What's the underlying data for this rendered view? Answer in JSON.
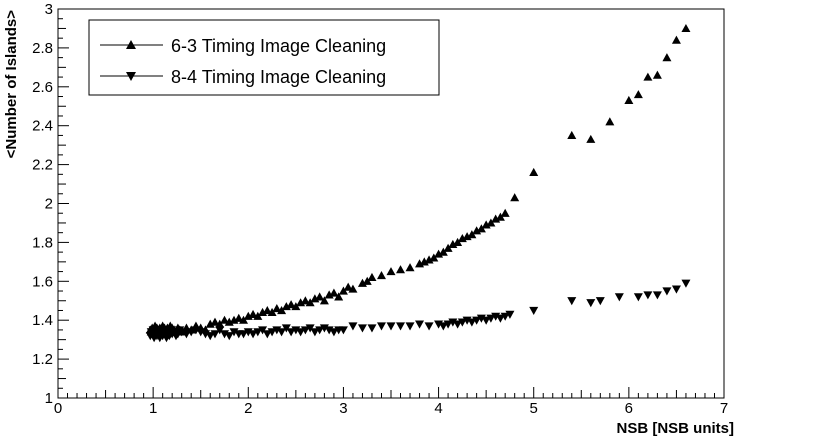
{
  "chart_data": {
    "type": "scatter",
    "xlabel": "NSB [NSB units]",
    "ylabel": "<Number of Islands>",
    "xlim": [
      0,
      7
    ],
    "ylim": [
      1,
      3
    ],
    "xticks": [
      "0",
      "1",
      "2",
      "3",
      "4",
      "5",
      "6",
      "7"
    ],
    "yticks": [
      "1",
      "1.2",
      "1.4",
      "1.6",
      "1.8",
      "2",
      "2.2",
      "2.4",
      "2.6",
      "2.8",
      "3"
    ],
    "grid": false,
    "legend_position": "top-left",
    "series": [
      {
        "name": "6-3 Timing Image Cleaning",
        "marker": "triangle-up",
        "color": "#000000",
        "x": [
          0.97,
          0.98,
          0.99,
          1.0,
          1.01,
          1.02,
          1.03,
          1.04,
          1.05,
          1.06,
          1.07,
          1.08,
          1.09,
          1.1,
          1.11,
          1.12,
          1.13,
          1.14,
          1.15,
          1.16,
          1.17,
          1.18,
          1.19,
          1.2,
          1.22,
          1.24,
          1.26,
          1.28,
          1.3,
          1.35,
          1.4,
          1.45,
          1.5,
          1.55,
          1.6,
          1.65,
          1.7,
          1.75,
          1.8,
          1.85,
          1.9,
          1.95,
          2.0,
          2.05,
          2.1,
          2.15,
          2.2,
          2.25,
          2.3,
          2.35,
          2.4,
          2.45,
          2.5,
          2.55,
          2.6,
          2.65,
          2.7,
          2.75,
          2.8,
          2.85,
          2.9,
          2.95,
          3.0,
          3.05,
          3.1,
          3.2,
          3.25,
          3.3,
          3.4,
          3.5,
          3.6,
          3.7,
          3.8,
          3.85,
          3.9,
          3.95,
          4.0,
          4.05,
          4.1,
          4.15,
          4.2,
          4.25,
          4.3,
          4.35,
          4.4,
          4.45,
          4.5,
          4.55,
          4.6,
          4.65,
          4.7,
          4.8,
          5.0,
          5.4,
          5.6,
          5.8,
          6.0,
          6.1,
          6.2,
          6.3,
          6.4,
          6.5,
          6.6
        ],
        "y": [
          1.35,
          1.34,
          1.36,
          1.33,
          1.35,
          1.37,
          1.34,
          1.36,
          1.35,
          1.33,
          1.36,
          1.34,
          1.35,
          1.37,
          1.34,
          1.36,
          1.33,
          1.35,
          1.36,
          1.34,
          1.35,
          1.37,
          1.34,
          1.36,
          1.35,
          1.34,
          1.36,
          1.35,
          1.34,
          1.36,
          1.35,
          1.37,
          1.36,
          1.35,
          1.38,
          1.39,
          1.38,
          1.4,
          1.39,
          1.4,
          1.41,
          1.4,
          1.42,
          1.43,
          1.42,
          1.44,
          1.45,
          1.44,
          1.46,
          1.45,
          1.47,
          1.48,
          1.47,
          1.49,
          1.5,
          1.49,
          1.51,
          1.52,
          1.5,
          1.53,
          1.54,
          1.52,
          1.55,
          1.57,
          1.56,
          1.59,
          1.6,
          1.62,
          1.63,
          1.65,
          1.66,
          1.67,
          1.69,
          1.7,
          1.71,
          1.72,
          1.74,
          1.75,
          1.77,
          1.79,
          1.8,
          1.82,
          1.83,
          1.84,
          1.86,
          1.87,
          1.89,
          1.9,
          1.92,
          1.93,
          1.95,
          2.03,
          2.16,
          2.35,
          2.33,
          2.42,
          2.53,
          2.56,
          2.65,
          2.66,
          2.75,
          2.84,
          2.9
        ]
      },
      {
        "name": "8-4 Timing Image Cleaning",
        "marker": "triangle-down",
        "color": "#000000",
        "x": [
          0.97,
          0.98,
          0.99,
          1.0,
          1.01,
          1.02,
          1.03,
          1.04,
          1.05,
          1.06,
          1.07,
          1.08,
          1.09,
          1.1,
          1.11,
          1.12,
          1.13,
          1.14,
          1.15,
          1.16,
          1.17,
          1.18,
          1.19,
          1.2,
          1.22,
          1.24,
          1.26,
          1.28,
          1.3,
          1.35,
          1.4,
          1.45,
          1.5,
          1.55,
          1.6,
          1.65,
          1.7,
          1.75,
          1.8,
          1.85,
          1.9,
          1.95,
          2.0,
          2.05,
          2.1,
          2.15,
          2.2,
          2.25,
          2.3,
          2.35,
          2.4,
          2.45,
          2.5,
          2.55,
          2.6,
          2.65,
          2.7,
          2.75,
          2.8,
          2.85,
          2.9,
          2.95,
          3.0,
          3.1,
          3.2,
          3.3,
          3.4,
          3.5,
          3.6,
          3.7,
          3.8,
          3.9,
          4.0,
          4.05,
          4.1,
          4.15,
          4.2,
          4.25,
          4.3,
          4.35,
          4.4,
          4.45,
          4.5,
          4.55,
          4.6,
          4.65,
          4.7,
          4.75,
          5.0,
          5.4,
          5.6,
          5.7,
          5.9,
          6.1,
          6.2,
          6.3,
          6.4,
          6.5,
          6.6
        ],
        "y": [
          1.32,
          1.34,
          1.33,
          1.35,
          1.31,
          1.33,
          1.34,
          1.32,
          1.35,
          1.33,
          1.31,
          1.34,
          1.33,
          1.32,
          1.35,
          1.33,
          1.34,
          1.31,
          1.33,
          1.34,
          1.32,
          1.33,
          1.35,
          1.33,
          1.34,
          1.32,
          1.33,
          1.35,
          1.34,
          1.33,
          1.34,
          1.35,
          1.34,
          1.33,
          1.32,
          1.33,
          1.35,
          1.33,
          1.32,
          1.34,
          1.33,
          1.33,
          1.34,
          1.33,
          1.34,
          1.35,
          1.33,
          1.34,
          1.35,
          1.34,
          1.36,
          1.34,
          1.35,
          1.34,
          1.35,
          1.36,
          1.34,
          1.35,
          1.36,
          1.35,
          1.34,
          1.35,
          1.35,
          1.37,
          1.36,
          1.36,
          1.37,
          1.37,
          1.37,
          1.37,
          1.38,
          1.37,
          1.38,
          1.37,
          1.38,
          1.39,
          1.38,
          1.39,
          1.4,
          1.39,
          1.4,
          1.41,
          1.4,
          1.41,
          1.42,
          1.41,
          1.42,
          1.43,
          1.45,
          1.5,
          1.49,
          1.5,
          1.52,
          1.52,
          1.53,
          1.53,
          1.55,
          1.56,
          1.59
        ]
      }
    ]
  }
}
